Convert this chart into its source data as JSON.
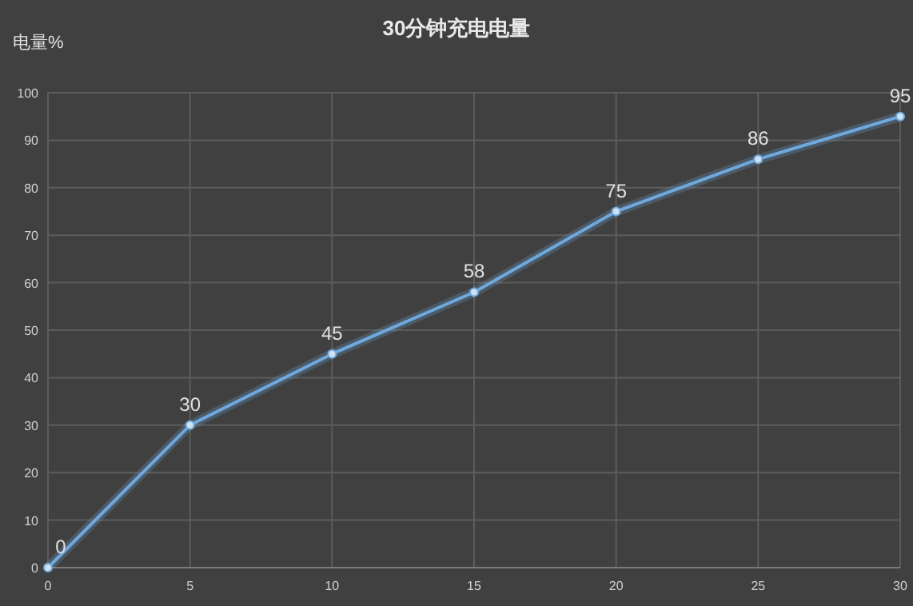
{
  "chart_data": {
    "type": "line",
    "title": "30分钟充电电量",
    "ylabel": "电量%",
    "x": [
      0,
      5,
      10,
      15,
      20,
      25,
      30
    ],
    "series": [
      {
        "color": "#6fa8dc",
        "values": [
          0,
          30,
          45,
          58,
          75,
          86,
          95
        ]
      }
    ],
    "xlim": [
      0,
      30
    ],
    "ylim": [
      0,
      100
    ],
    "xticks": [
      0,
      5,
      10,
      15,
      20,
      25,
      30
    ],
    "yticks": [
      0,
      10,
      20,
      30,
      40,
      50,
      60,
      70,
      80,
      90,
      100
    ],
    "grid": true,
    "marker": "circle",
    "line_style": "solid",
    "data_labels": true
  }
}
